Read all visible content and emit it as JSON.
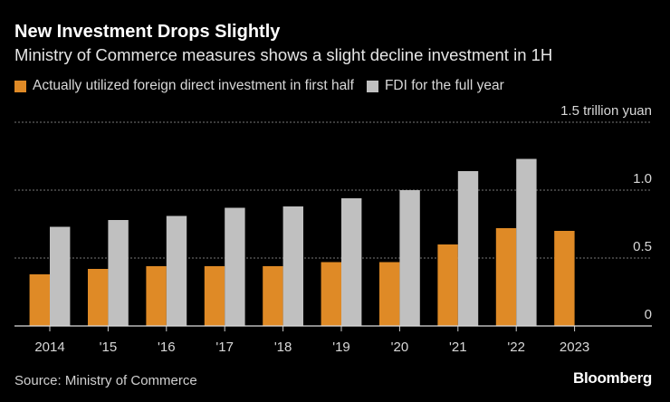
{
  "chart_data": {
    "type": "bar",
    "title": "New Investment Drops Slightly",
    "subtitle": "Ministry of Commerce measures shows a slight decline investment in 1H",
    "categories": [
      "2014",
      "'15",
      "'16",
      "'17",
      "'18",
      "'19",
      "'20",
      "'21",
      "'22",
      "2023"
    ],
    "series": [
      {
        "name": "Actually utilized foreign direct investment in first half",
        "color": "#DF8A26",
        "values": [
          0.38,
          0.42,
          0.44,
          0.44,
          0.44,
          0.47,
          0.47,
          0.6,
          0.72,
          0.7
        ]
      },
      {
        "name": "FDI for the full year",
        "color": "#C0C0C0",
        "values": [
          0.73,
          0.78,
          0.81,
          0.87,
          0.88,
          0.94,
          1.0,
          1.14,
          1.23,
          null
        ]
      }
    ],
    "yticks": [
      0,
      0.5,
      1.0,
      1.5
    ],
    "ytick_labels": [
      "0",
      "0.5",
      "1.0",
      "1.5 trillion yuan"
    ],
    "ylim": [
      0,
      1.5
    ],
    "xlabel": "",
    "ylabel": "trillion yuan",
    "grid": true,
    "legend": "top-left",
    "source": "Source: Ministry of Commerce",
    "brand": "Bloomberg"
  }
}
